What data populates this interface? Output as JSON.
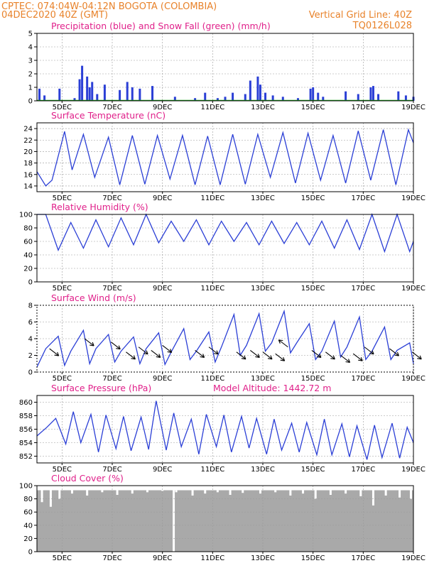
{
  "header": {
    "line1": "CPTEC:    074:04W-04:12N   BOGOTA (COLOMBIA)",
    "line2": "04DEC2020 40Z (GMT)",
    "grid_note": "Vertical Grid Line: 40Z",
    "code": "TQ0126L028"
  },
  "colors": {
    "header": "#e8822a",
    "panel_title": "#e0208a",
    "series": "#2b3fd6",
    "snow": "#1aa31a",
    "cloud": "#a9a9a9",
    "grid": "#9a9a9a"
  },
  "date_labels": [
    "5DEC",
    "7DEC",
    "9DEC",
    "11DEC",
    "13DEC",
    "15DEC",
    "17DEC",
    "19DEC"
  ],
  "chart_data": [
    {
      "id": "precip",
      "type": "bar",
      "title": "Precipitation (blue) and Snow Fall (green) (mm/h)",
      "ylim": [
        0,
        5
      ],
      "yticks": [
        0,
        1,
        2,
        3,
        4,
        5
      ],
      "x": [
        4.1,
        4.3,
        4.9,
        5.5,
        5.7,
        5.8,
        6.0,
        6.1,
        6.2,
        6.4,
        6.7,
        7.3,
        7.6,
        7.8,
        8.1,
        8.6,
        9.5,
        10.3,
        10.7,
        11.2,
        11.5,
        11.8,
        12.3,
        12.5,
        12.8,
        12.9,
        13.1,
        13.4,
        13.8,
        14.4,
        14.9,
        15.0,
        15.2,
        15.4,
        16.3,
        16.8,
        17.3,
        17.4,
        17.6,
        18.4,
        18.7,
        19.0
      ],
      "values": [
        0.9,
        0.4,
        0.9,
        0.2,
        1.6,
        2.6,
        1.8,
        1.0,
        1.4,
        0.5,
        1.2,
        0.8,
        1.4,
        1.0,
        0.9,
        1.1,
        0.3,
        0.2,
        0.6,
        0.2,
        0.3,
        0.6,
        0.5,
        1.5,
        1.8,
        1.2,
        0.6,
        0.4,
        0.3,
        0.2,
        0.9,
        1.0,
        0.6,
        0.3,
        0.7,
        0.5,
        1.0,
        1.1,
        0.5,
        0.7,
        0.4,
        0.3
      ],
      "snow": 0
    },
    {
      "id": "temperature",
      "type": "line",
      "title": "Surface Temperature (nC)",
      "ylim": [
        13,
        25
      ],
      "yticks": [
        14,
        16,
        18,
        20,
        22,
        24
      ],
      "x": [
        4.0,
        4.35,
        4.6,
        5.1,
        5.4,
        5.85,
        6.3,
        6.85,
        7.3,
        7.8,
        8.3,
        8.8,
        9.3,
        9.8,
        10.3,
        10.8,
        11.3,
        11.8,
        12.3,
        12.8,
        13.3,
        13.8,
        14.3,
        14.8,
        15.3,
        15.8,
        16.3,
        16.8,
        17.3,
        17.8,
        18.3,
        18.8,
        19.0
      ],
      "y": [
        16.5,
        14.0,
        15.0,
        23.5,
        16.8,
        23.0,
        15.5,
        22.5,
        14.2,
        22.8,
        14.3,
        22.8,
        15.2,
        22.8,
        14.2,
        22.7,
        14.2,
        23.0,
        14.3,
        23.0,
        15.5,
        23.3,
        14.5,
        23.2,
        15.0,
        22.8,
        14.5,
        23.6,
        15.0,
        23.8,
        14.2,
        23.8,
        21.5
      ]
    },
    {
      "id": "humidity",
      "type": "line",
      "title": "Relative Humidity (%)",
      "ylim": [
        0,
        100
      ],
      "yticks": [
        0,
        20,
        40,
        60,
        80,
        100
      ],
      "x": [
        4.0,
        4.35,
        4.85,
        5.35,
        5.85,
        6.35,
        6.85,
        7.35,
        7.85,
        8.35,
        8.85,
        9.35,
        9.85,
        10.35,
        10.85,
        11.35,
        11.85,
        12.35,
        12.85,
        13.35,
        13.85,
        14.35,
        14.85,
        15.35,
        15.85,
        16.35,
        16.85,
        17.35,
        17.85,
        18.35,
        18.85,
        19.0
      ],
      "y": [
        100,
        100,
        47,
        88,
        50,
        92,
        52,
        95,
        55,
        100,
        58,
        90,
        60,
        92,
        55,
        90,
        60,
        88,
        55,
        90,
        57,
        88,
        55,
        90,
        50,
        92,
        48,
        100,
        45,
        100,
        45,
        60
      ]
    },
    {
      "id": "wind",
      "type": "line",
      "title": "Surface Wind (m/s)",
      "ylim": [
        0,
        8
      ],
      "yticks": [
        0,
        2,
        4,
        6,
        8
      ],
      "x": [
        4.0,
        4.35,
        4.85,
        5.1,
        5.35,
        5.85,
        6.1,
        6.35,
        6.85,
        7.1,
        7.35,
        7.85,
        8.1,
        8.35,
        8.85,
        9.1,
        9.35,
        9.85,
        10.1,
        10.35,
        10.85,
        11.1,
        11.35,
        11.85,
        12.1,
        12.35,
        12.85,
        13.1,
        13.35,
        13.85,
        14.1,
        14.35,
        14.85,
        15.1,
        15.35,
        15.85,
        16.1,
        16.35,
        16.85,
        17.1,
        17.35,
        17.85,
        18.1,
        18.35,
        18.85,
        19.0
      ],
      "y": [
        0.6,
        2.8,
        4.3,
        0.8,
        2.5,
        5.0,
        1.0,
        2.8,
        4.5,
        1.2,
        2.5,
        4.2,
        1.0,
        2.8,
        4.7,
        0.9,
        2.4,
        5.2,
        1.5,
        2.5,
        4.8,
        1.2,
        3.0,
        6.9,
        2.0,
        3.2,
        7.0,
        2.5,
        3.5,
        7.3,
        2.3,
        3.5,
        5.8,
        1.5,
        2.5,
        6.1,
        1.8,
        3.0,
        6.6,
        1.5,
        2.5,
        5.4,
        1.5,
        2.6,
        3.5,
        1.0
      ],
      "vectors": [
        {
          "x": 4.5,
          "speed": 2.8,
          "dir": "SE"
        },
        {
          "x": 5.9,
          "speed": 4.0,
          "dir": "SE"
        },
        {
          "x": 6.95,
          "speed": 3.6,
          "dir": "SE"
        },
        {
          "x": 7.55,
          "speed": 2.4,
          "dir": "SE"
        },
        {
          "x": 8.05,
          "speed": 3.0,
          "dir": "SE"
        },
        {
          "x": 8.55,
          "speed": 2.6,
          "dir": "SE"
        },
        {
          "x": 9.0,
          "speed": 3.2,
          "dir": "SE"
        },
        {
          "x": 10.3,
          "speed": 2.6,
          "dir": "SE"
        },
        {
          "x": 10.85,
          "speed": 3.0,
          "dir": "SE"
        },
        {
          "x": 11.95,
          "speed": 2.4,
          "dir": "SE"
        },
        {
          "x": 12.5,
          "speed": 2.6,
          "dir": "SE"
        },
        {
          "x": 13.0,
          "speed": 2.4,
          "dir": "SE"
        },
        {
          "x": 13.5,
          "speed": 2.2,
          "dir": "SE"
        },
        {
          "x": 14.0,
          "speed": 3.0,
          "dir": "NW"
        },
        {
          "x": 14.95,
          "speed": 2.6,
          "dir": "SE"
        },
        {
          "x": 15.5,
          "speed": 2.4,
          "dir": "SE"
        },
        {
          "x": 16.1,
          "speed": 2.0,
          "dir": "SE"
        },
        {
          "x": 16.6,
          "speed": 2.2,
          "dir": "SE"
        },
        {
          "x": 17.05,
          "speed": 3.0,
          "dir": "SE"
        },
        {
          "x": 18.05,
          "speed": 2.8,
          "dir": "SE"
        },
        {
          "x": 18.95,
          "speed": 2.4,
          "dir": "SE"
        }
      ]
    },
    {
      "id": "pressure",
      "type": "line",
      "title": "Surface Pressure (hPa)",
      "subtitle": "Model Altitude: 1442.72 m",
      "ylim": [
        851,
        861
      ],
      "yticks": [
        852,
        854,
        856,
        858,
        860
      ],
      "x": [
        4.0,
        4.4,
        4.75,
        5.15,
        5.45,
        5.75,
        6.15,
        6.45,
        6.75,
        7.15,
        7.45,
        7.75,
        8.15,
        8.45,
        8.75,
        9.15,
        9.45,
        9.75,
        10.15,
        10.45,
        10.75,
        11.15,
        11.45,
        11.75,
        12.15,
        12.45,
        12.75,
        13.15,
        13.45,
        13.75,
        14.15,
        14.45,
        14.75,
        15.15,
        15.45,
        15.75,
        16.15,
        16.45,
        16.75,
        17.15,
        17.45,
        17.75,
        18.15,
        18.45,
        18.75,
        19.0
      ],
      "y": [
        855.0,
        856.3,
        857.6,
        853.8,
        858.6,
        854.0,
        858.2,
        852.6,
        858.1,
        853.1,
        857.9,
        852.8,
        857.8,
        853.0,
        860.2,
        852.9,
        858.4,
        853.4,
        857.5,
        852.3,
        858.2,
        853.4,
        858.1,
        852.6,
        857.9,
        853.2,
        857.6,
        852.3,
        857.5,
        852.9,
        856.9,
        852.6,
        857.0,
        852.2,
        857.5,
        852.2,
        856.8,
        851.9,
        856.5,
        851.5,
        856.6,
        851.8,
        856.9,
        851.7,
        856.3,
        854.0
      ]
    },
    {
      "id": "cloud",
      "type": "bar",
      "title": "Cloud Cover (%)",
      "ylim": [
        0,
        100
      ],
      "yticks": [
        0,
        20,
        40,
        60,
        80,
        100
      ],
      "base": 93,
      "x": [
        4.2,
        4.55,
        4.9,
        5.4,
        6.0,
        6.6,
        7.2,
        7.8,
        8.4,
        9.0,
        9.45,
        9.55,
        10.2,
        10.7,
        11.2,
        11.7,
        12.2,
        12.9,
        13.5,
        14.1,
        14.6,
        15.1,
        15.7,
        16.3,
        16.9,
        17.4,
        17.9,
        18.45,
        18.9
      ],
      "values": [
        75,
        68,
        80,
        88,
        85,
        90,
        86,
        88,
        90,
        92,
        0,
        90,
        85,
        88,
        90,
        86,
        89,
        88,
        90,
        85,
        88,
        80,
        86,
        88,
        84,
        70,
        85,
        82,
        80
      ]
    }
  ]
}
